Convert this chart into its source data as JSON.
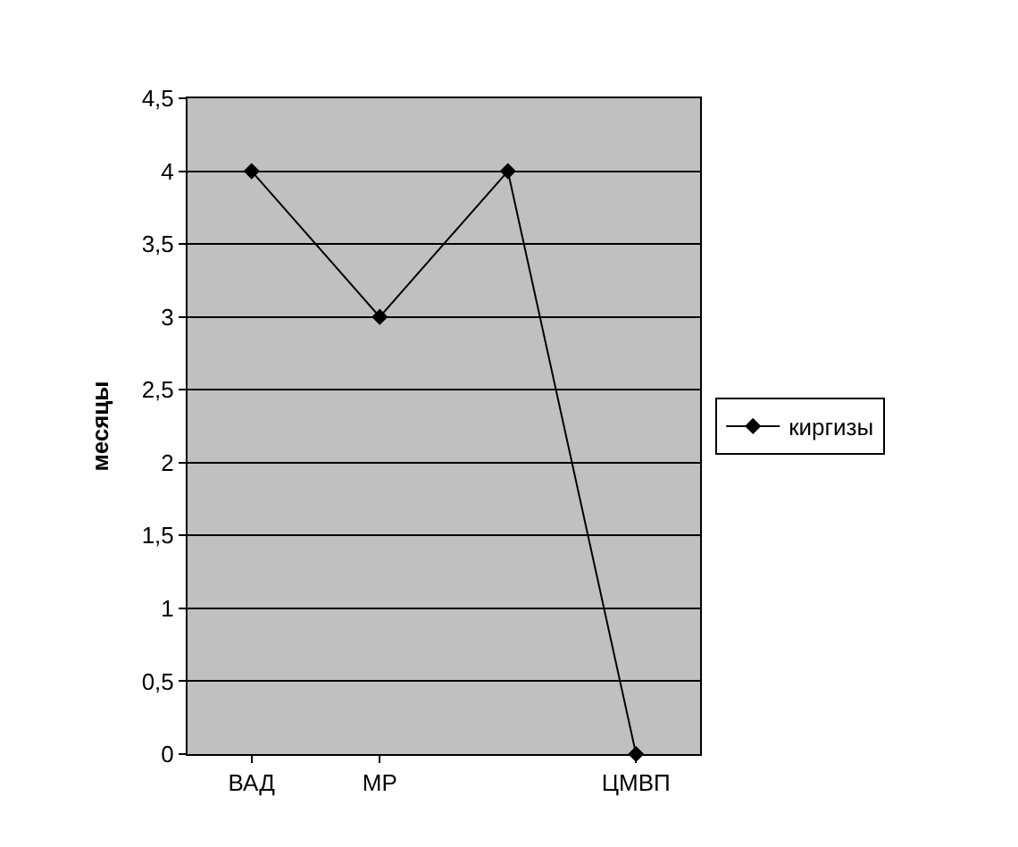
{
  "chart_data": {
    "type": "line",
    "ylabel": "месяцы",
    "categories": [
      "ВАД",
      "МР",
      null,
      "ЦМВП"
    ],
    "series": [
      {
        "name": "киргизы",
        "color": "#000000",
        "values": [
          4,
          3,
          4,
          0
        ]
      }
    ],
    "ylim": [
      0,
      4.5
    ],
    "yticks": [
      0,
      {
        "value": 0.5,
        "label": "0,5"
      },
      1,
      {
        "value": 1.5,
        "label": "1,5"
      },
      2,
      {
        "value": 2.5,
        "label": "2,5"
      },
      3,
      {
        "value": 3.5,
        "label": "3,5"
      },
      4,
      {
        "value": 4.5,
        "label": "4,5"
      }
    ],
    "grid": "y",
    "legend": "right",
    "marker": "diamond",
    "line_style": "solid"
  }
}
